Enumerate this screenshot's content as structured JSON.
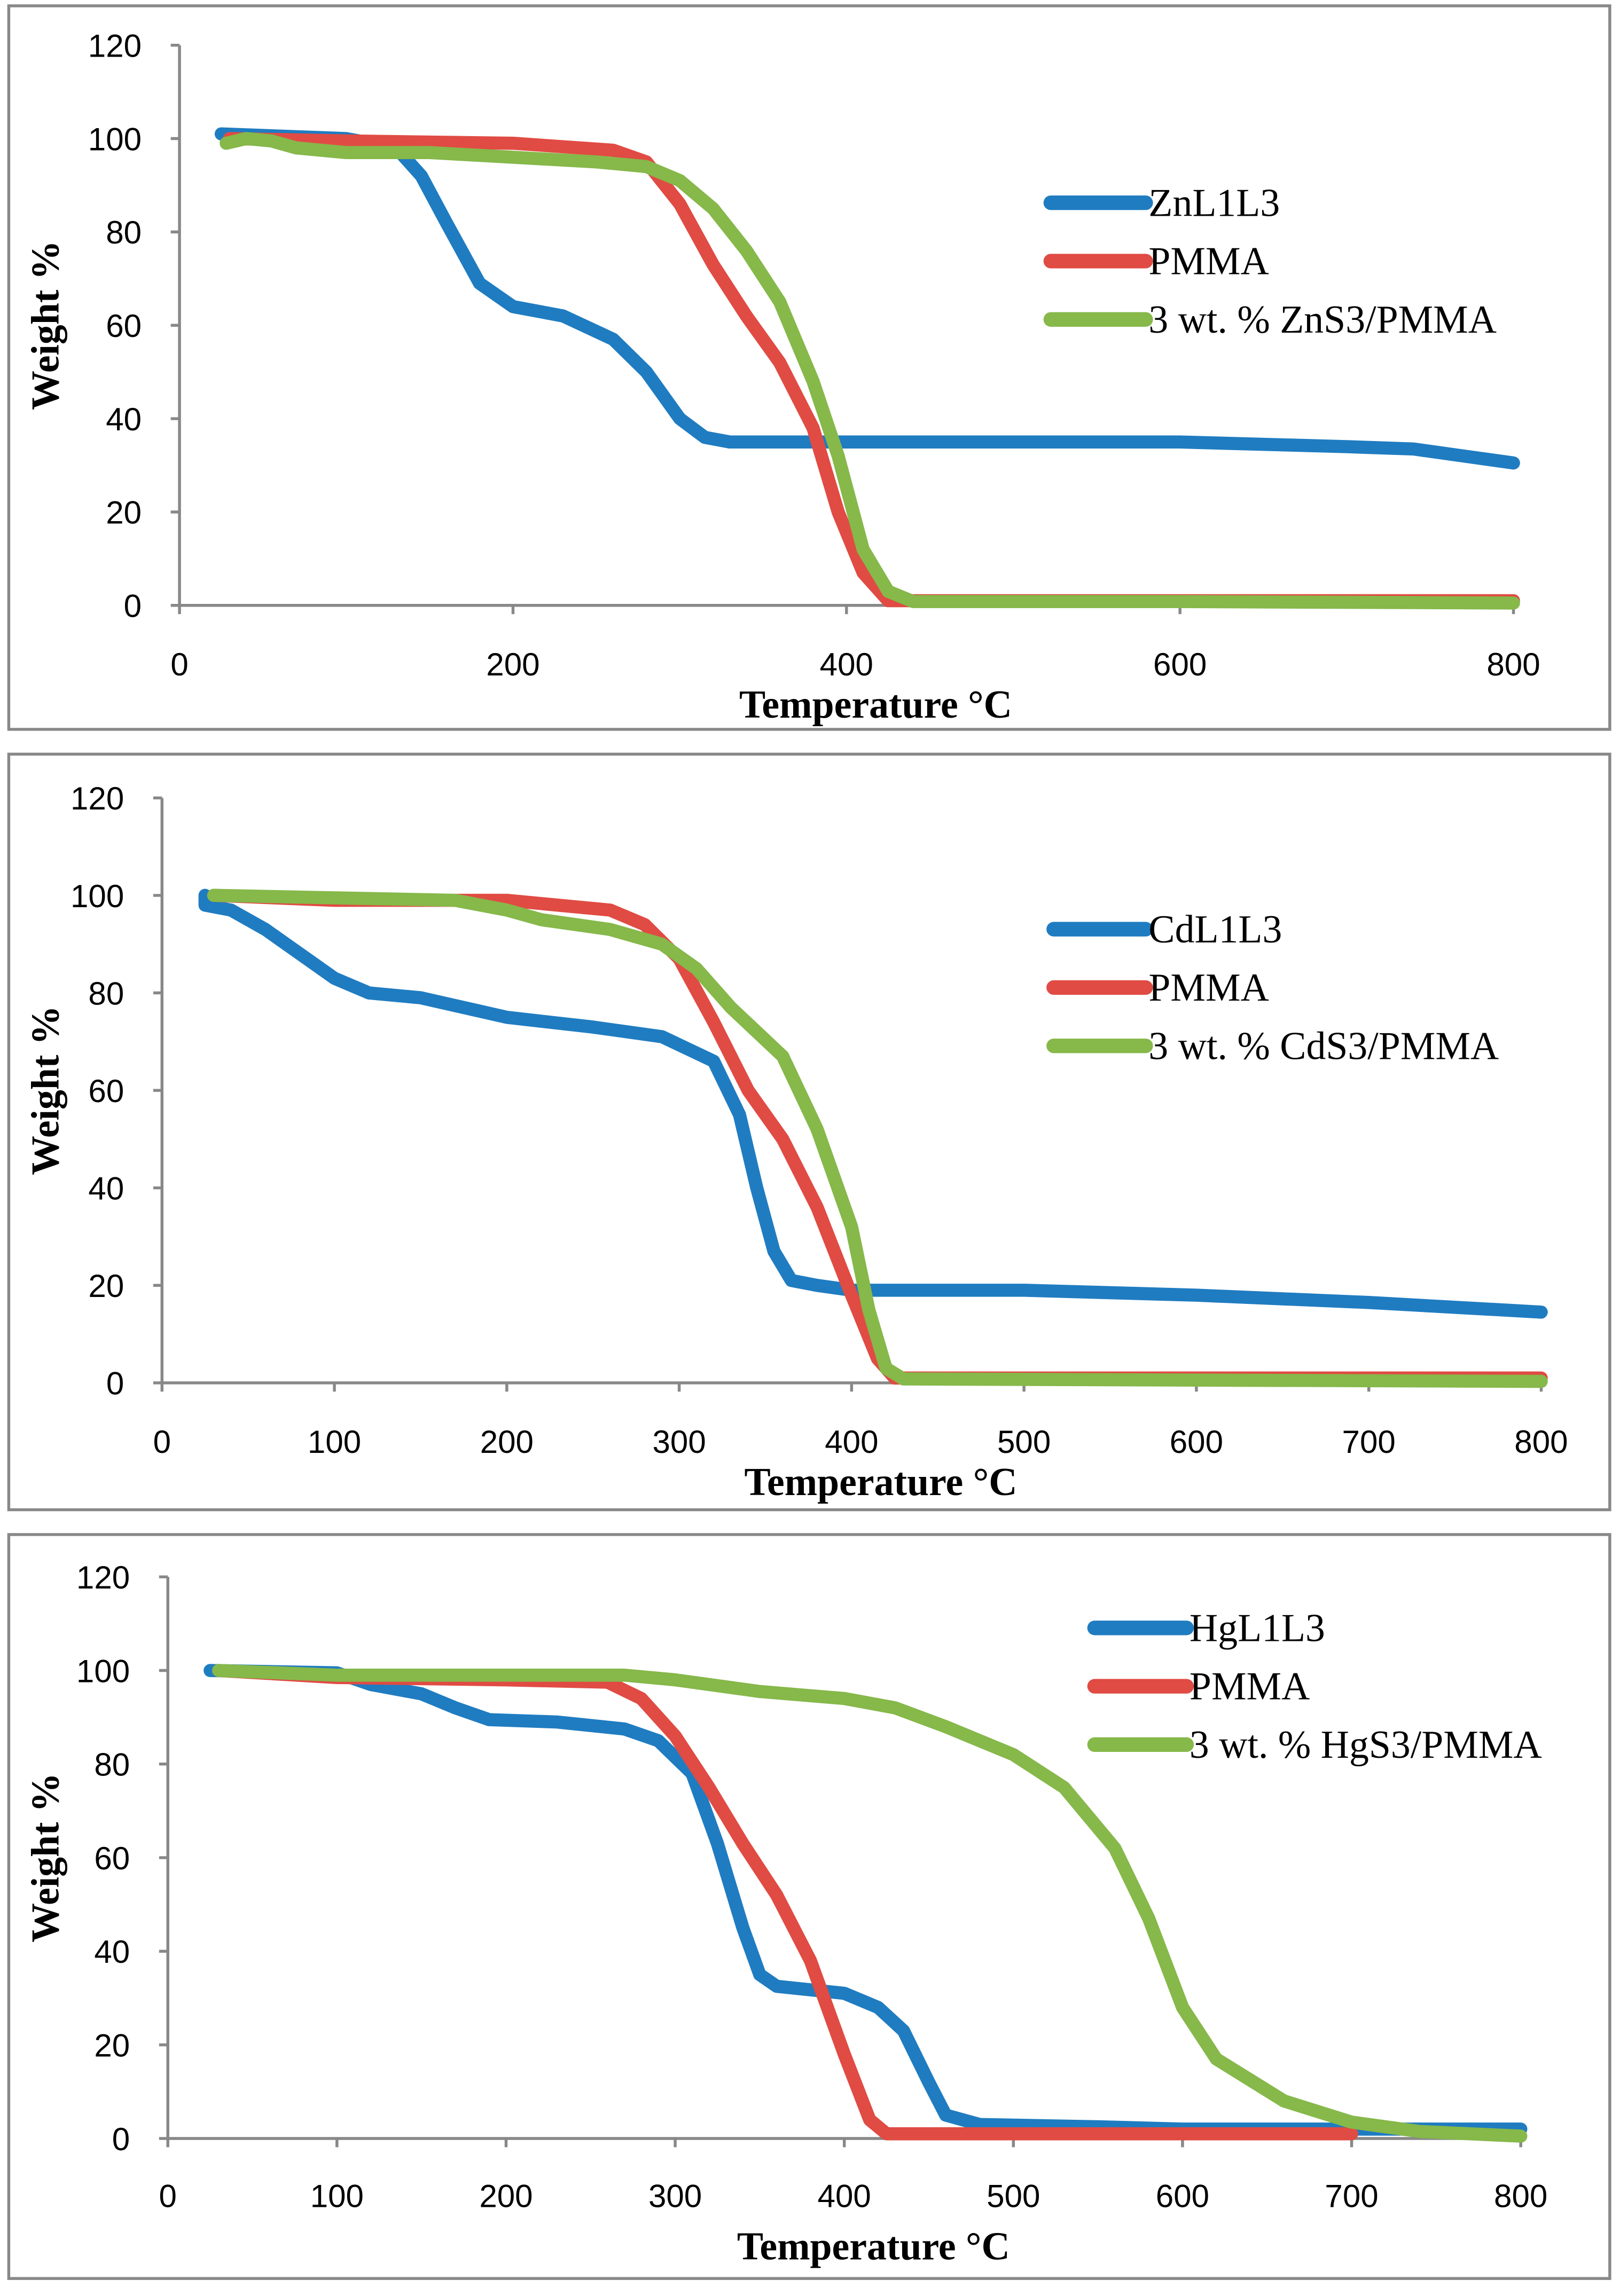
{
  "colors": {
    "blue": "#1F7CC1",
    "red": "#E04B43",
    "green": "#86B84A",
    "axis": "#888888",
    "border": "#888888"
  },
  "chart_data": [
    {
      "type": "line",
      "xlabel": "Temperature °C",
      "ylabel": "Weight %",
      "xlim": [
        0,
        800
      ],
      "ylim": [
        0,
        120
      ],
      "xticks": [
        0,
        200,
        400,
        600,
        800
      ],
      "yticks": [
        0,
        20,
        40,
        60,
        80,
        100,
        120
      ],
      "legend": "right",
      "series": [
        {
          "name": "ZnL1L3",
          "color": "blue",
          "x": [
            25,
            100,
            130,
            145,
            160,
            180,
            200,
            230,
            260,
            280,
            300,
            315,
            330,
            400,
            600,
            700,
            740,
            770,
            800
          ],
          "y": [
            101,
            100,
            98,
            92,
            82,
            69,
            64,
            62,
            57,
            50,
            40,
            36,
            35,
            35,
            35,
            34,
            33.5,
            32,
            30.5
          ]
        },
        {
          "name": "PMMA",
          "color": "red",
          "x": [
            30,
            100,
            200,
            260,
            280,
            300,
            320,
            340,
            360,
            380,
            395,
            410,
            425,
            440,
            800
          ],
          "y": [
            100,
            99.5,
            99,
            97.5,
            95,
            86,
            73,
            62,
            52,
            38,
            20,
            7,
            1,
            1,
            1
          ]
        },
        {
          "name": "3 wt. % ZnS3/PMMA",
          "color": "green",
          "x": [
            28,
            40,
            55,
            70,
            100,
            150,
            200,
            250,
            280,
            300,
            320,
            340,
            360,
            380,
            395,
            410,
            425,
            440,
            600,
            800
          ],
          "y": [
            99,
            100,
            99.5,
            98,
            97,
            97,
            96,
            95,
            94,
            91,
            85,
            76,
            65,
            48,
            32,
            12,
            3,
            0.8,
            0.8,
            0.5
          ]
        }
      ]
    },
    {
      "type": "line",
      "xlabel": "Temperature °C",
      "ylabel": "Weight %",
      "xlim": [
        0,
        800
      ],
      "ylim": [
        0,
        120
      ],
      "xticks": [
        0,
        100,
        200,
        300,
        400,
        500,
        600,
        700,
        800
      ],
      "yticks": [
        0,
        20,
        40,
        60,
        80,
        100,
        120
      ],
      "legend": "right",
      "series": [
        {
          "name": "CdL1L3",
          "color": "blue",
          "x": [
            25,
            25,
            40,
            60,
            80,
            100,
            120,
            150,
            200,
            250,
            290,
            320,
            335,
            345,
            355,
            365,
            380,
            400,
            500,
            600,
            700,
            800
          ],
          "y": [
            100,
            98,
            97,
            93,
            88,
            83,
            80,
            79,
            75,
            73,
            71,
            66,
            55,
            40,
            27,
            21,
            20,
            19,
            19,
            18,
            16.5,
            14.5
          ]
        },
        {
          "name": "PMMA",
          "color": "red",
          "x": [
            30,
            100,
            200,
            260,
            280,
            300,
            320,
            340,
            360,
            380,
            400,
            415,
            425,
            800
          ],
          "y": [
            100,
            99,
            99,
            97,
            94,
            87,
            74,
            60,
            50,
            36,
            18,
            5,
            1,
            1
          ]
        },
        {
          "name": "3 wt. % CdS3/PMMA",
          "color": "green",
          "x": [
            30,
            100,
            170,
            200,
            220,
            260,
            290,
            310,
            330,
            360,
            380,
            400,
            410,
            420,
            430,
            800
          ],
          "y": [
            100,
            99.5,
            99,
            97,
            95,
            93,
            90,
            85,
            77,
            67,
            52,
            32,
            15,
            3,
            0.8,
            0.3
          ]
        }
      ]
    },
    {
      "type": "line",
      "xlabel": "Temperature °C",
      "ylabel": "Weight %",
      "xlim": [
        0,
        800
      ],
      "ylim": [
        0,
        120
      ],
      "xticks": [
        0,
        100,
        200,
        300,
        400,
        500,
        600,
        700,
        800
      ],
      "yticks": [
        0,
        20,
        40,
        60,
        80,
        100,
        120
      ],
      "legend": "top-right",
      "series": [
        {
          "name": "HgL1L3",
          "color": "blue",
          "x": [
            25,
            100,
            120,
            150,
            170,
            190,
            230,
            270,
            290,
            310,
            325,
            340,
            350,
            360,
            400,
            420,
            435,
            450,
            460,
            480,
            550,
            600,
            800
          ],
          "y": [
            100,
            99.5,
            97,
            95,
            92,
            89.5,
            89,
            87.5,
            85,
            78,
            63,
            45,
            35,
            32.5,
            31,
            28,
            23,
            12,
            5,
            3,
            2.5,
            2,
            2
          ]
        },
        {
          "name": "PMMA",
          "color": "red",
          "x": [
            30,
            100,
            200,
            260,
            280,
            300,
            320,
            340,
            360,
            380,
            400,
            415,
            425,
            700
          ],
          "y": [
            100,
            98.5,
            98,
            97.5,
            94,
            86,
            75,
            63,
            52,
            38,
            18,
            4,
            1,
            1
          ]
        },
        {
          "name": "3 wt. % HgS3/PMMA",
          "color": "green",
          "x": [
            30,
            100,
            200,
            270,
            300,
            350,
            400,
            430,
            460,
            500,
            530,
            560,
            580,
            600,
            620,
            660,
            700,
            740,
            800
          ],
          "y": [
            100,
            99,
            99,
            99,
            98,
            95.5,
            94,
            92,
            88,
            82,
            75,
            62,
            47,
            28,
            17,
            8,
            3.5,
            1.5,
            0.5
          ]
        }
      ]
    }
  ]
}
